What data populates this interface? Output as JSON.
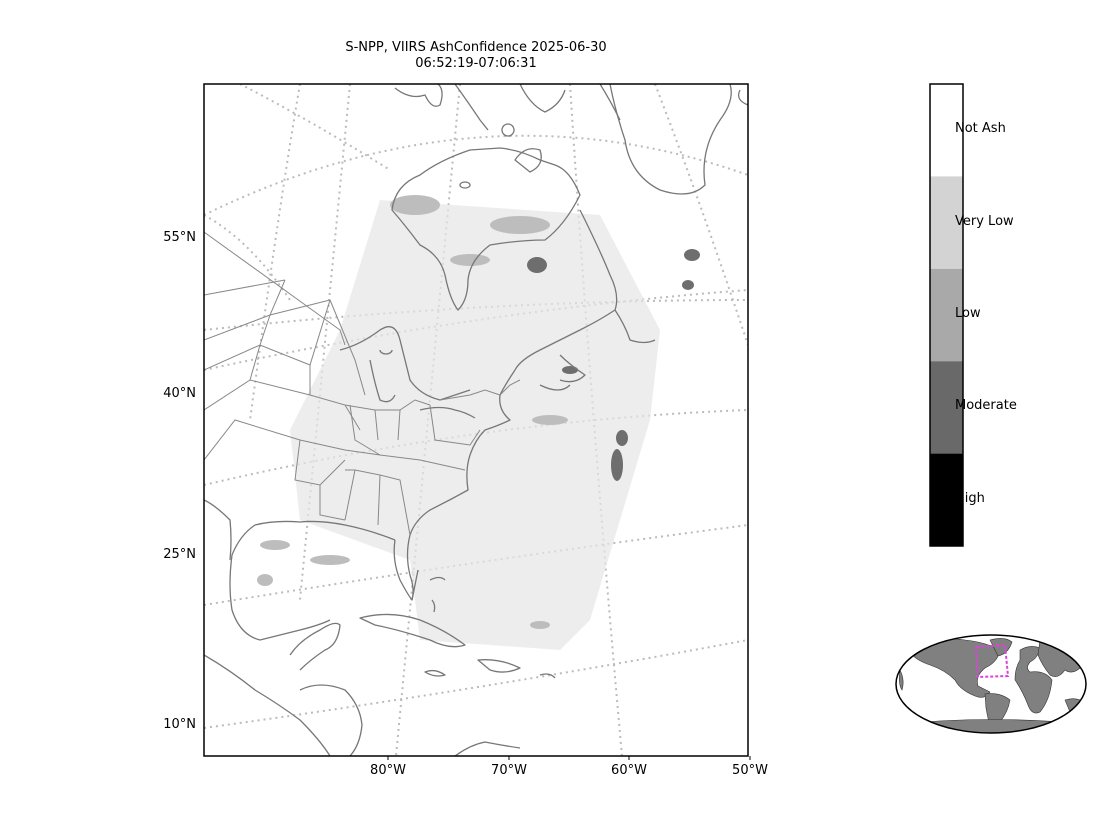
{
  "title_line1": "S-NPP, VIIRS AshConfidence 2025-06-30",
  "title_line2": "06:52:19-07:06:31",
  "latitude_labels": [
    "55°N",
    "40°N",
    "25°N",
    "10°N"
  ],
  "longitude_labels": [
    "80°W",
    "70°W",
    "60°W",
    "50°W"
  ],
  "colorbar": {
    "categories": [
      {
        "label": "Not Ash",
        "color": "#ffffff"
      },
      {
        "label": "Very Low",
        "color": "#d3d3d3"
      },
      {
        "label": "Low",
        "color": "#a9a9a9"
      },
      {
        "label": "Moderate",
        "color": "#696969"
      },
      {
        "label": "High",
        "color": "#000000"
      }
    ]
  },
  "colors": {
    "coastline": "#777777",
    "graticule": "#bbbbbb",
    "inset_land": "#808080",
    "inset_box": "#e040e0"
  }
}
